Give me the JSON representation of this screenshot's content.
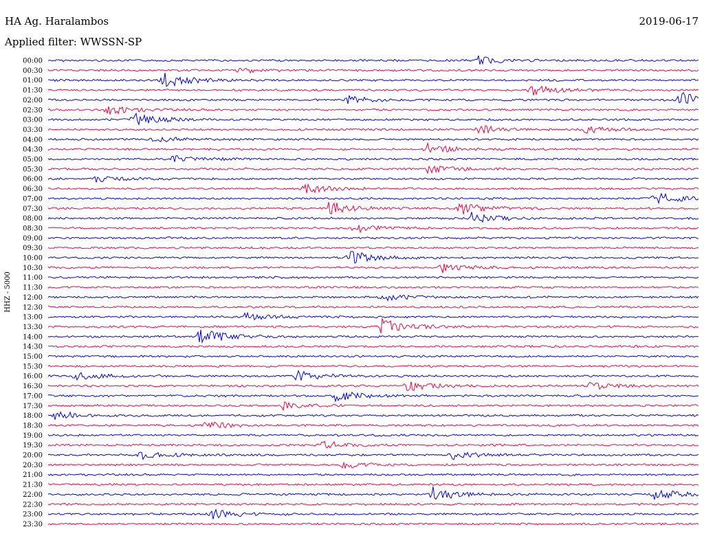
{
  "header": {
    "station": "HA Ag. Haralambos",
    "date": "2019-06-17",
    "filter": "Applied filter: WWSSN-SP"
  },
  "chart_data": {
    "type": "line",
    "ylabel": "HHZ - 5000",
    "colors": {
      "even_hour": "#0000ff",
      "half_hour": "#ff0040"
    },
    "rows": [
      "00:00",
      "00:30",
      "01:00",
      "01:30",
      "02:00",
      "02:30",
      "03:00",
      "03:30",
      "04:00",
      "04:30",
      "05:00",
      "05:30",
      "06:00",
      "06:30",
      "07:00",
      "07:30",
      "08:00",
      "08:30",
      "09:00",
      "09:30",
      "10:00",
      "10:30",
      "11:00",
      "11:30",
      "12:00",
      "12:30",
      "13:00",
      "13:30",
      "14:00",
      "14:30",
      "15:00",
      "15:30",
      "16:00",
      "16:30",
      "17:00",
      "17:30",
      "18:00",
      "18:30",
      "19:00",
      "19:30",
      "20:00",
      "20:30",
      "21:00",
      "21:30",
      "22:00",
      "22:30",
      "23:00",
      "23:30"
    ],
    "events": [
      {
        "row": 0,
        "t": 0.66,
        "amp": 6
      },
      {
        "row": 1,
        "t": 0.29,
        "amp": 4
      },
      {
        "row": 2,
        "t": 0.17,
        "amp": 14
      },
      {
        "row": 3,
        "t": 0.74,
        "amp": 8
      },
      {
        "row": 4,
        "t": 0.46,
        "amp": 6
      },
      {
        "row": 4,
        "t": 0.97,
        "amp": 12
      },
      {
        "row": 5,
        "t": 0.09,
        "amp": 8
      },
      {
        "row": 6,
        "t": 0.13,
        "amp": 10
      },
      {
        "row": 7,
        "t": 0.66,
        "amp": 6
      },
      {
        "row": 7,
        "t": 0.82,
        "amp": 6
      },
      {
        "row": 8,
        "t": 0.16,
        "amp": 5
      },
      {
        "row": 9,
        "t": 0.58,
        "amp": 8
      },
      {
        "row": 10,
        "t": 0.19,
        "amp": 6
      },
      {
        "row": 11,
        "t": 0.58,
        "amp": 6
      },
      {
        "row": 12,
        "t": 0.07,
        "amp": 5
      },
      {
        "row": 13,
        "t": 0.39,
        "amp": 7
      },
      {
        "row": 14,
        "t": 0.93,
        "amp": 10
      },
      {
        "row": 15,
        "t": 0.43,
        "amp": 10
      },
      {
        "row": 15,
        "t": 0.63,
        "amp": 10
      },
      {
        "row": 16,
        "t": 0.65,
        "amp": 8
      },
      {
        "row": 17,
        "t": 0.47,
        "amp": 6
      },
      {
        "row": 20,
        "t": 0.46,
        "amp": 10
      },
      {
        "row": 21,
        "t": 0.6,
        "amp": 8
      },
      {
        "row": 24,
        "t": 0.51,
        "amp": 6
      },
      {
        "row": 26,
        "t": 0.3,
        "amp": 6
      },
      {
        "row": 27,
        "t": 0.51,
        "amp": 12
      },
      {
        "row": 28,
        "t": 0.23,
        "amp": 14
      },
      {
        "row": 32,
        "t": 0.04,
        "amp": 7
      },
      {
        "row": 32,
        "t": 0.38,
        "amp": 8
      },
      {
        "row": 33,
        "t": 0.55,
        "amp": 8
      },
      {
        "row": 33,
        "t": 0.83,
        "amp": 6
      },
      {
        "row": 34,
        "t": 0.44,
        "amp": 8
      },
      {
        "row": 35,
        "t": 0.36,
        "amp": 6
      },
      {
        "row": 36,
        "t": 0.01,
        "amp": 6
      },
      {
        "row": 37,
        "t": 0.24,
        "amp": 6
      },
      {
        "row": 39,
        "t": 0.42,
        "amp": 6
      },
      {
        "row": 40,
        "t": 0.14,
        "amp": 7
      },
      {
        "row": 40,
        "t": 0.62,
        "amp": 6
      },
      {
        "row": 41,
        "t": 0.45,
        "amp": 5
      },
      {
        "row": 44,
        "t": 0.59,
        "amp": 12
      },
      {
        "row": 44,
        "t": 0.93,
        "amp": 8
      },
      {
        "row": 46,
        "t": 0.25,
        "amp": 8
      }
    ]
  }
}
